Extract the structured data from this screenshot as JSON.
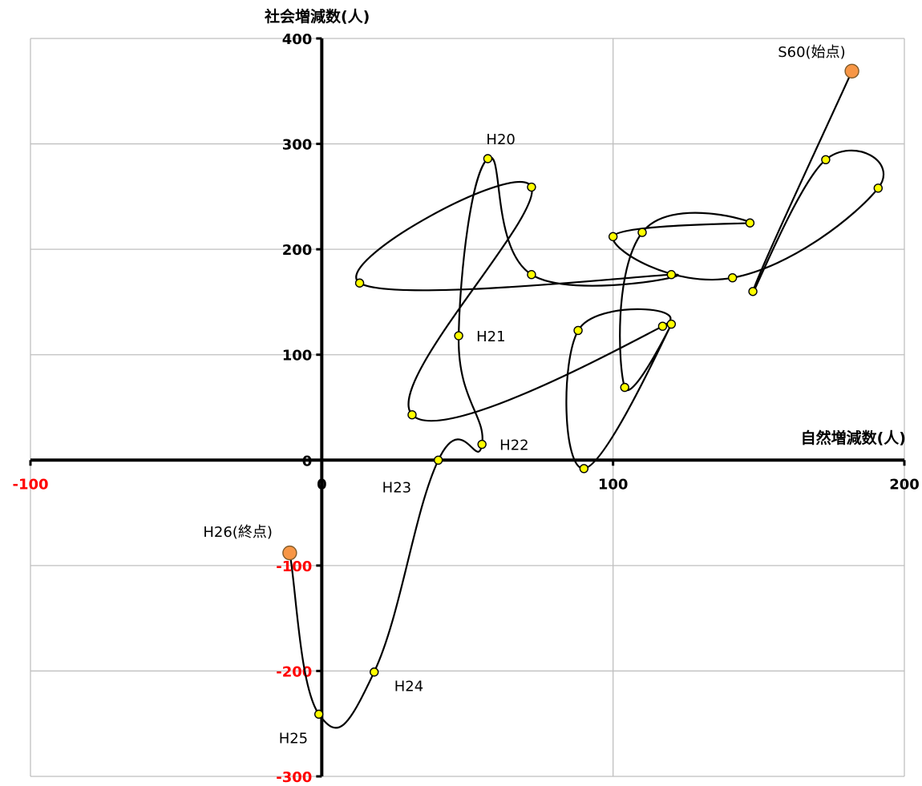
{
  "chart_data": {
    "type": "scatter",
    "connected": "smooth-line",
    "title": "",
    "xlabel": "自然増減数(人)",
    "ylabel": "社会増減数(人)",
    "xlim": [
      -100,
      200
    ],
    "ylim": [
      -300,
      400
    ],
    "x_ticks": [
      {
        "value": -100,
        "label": "-100",
        "color": "#ff0000"
      },
      {
        "value": 0,
        "label": "0",
        "color": "#000000"
      },
      {
        "value": 100,
        "label": "100",
        "color": "#000000"
      },
      {
        "value": 200,
        "label": "200",
        "color": "#000000"
      }
    ],
    "y_ticks": [
      {
        "value": -300,
        "label": "-300",
        "color": "#ff0000"
      },
      {
        "value": -200,
        "label": "-200",
        "color": "#ff0000"
      },
      {
        "value": -100,
        "label": "-100",
        "color": "#ff0000"
      },
      {
        "value": 0,
        "label": "0",
        "color": "#000000"
      },
      {
        "value": 100,
        "label": "100",
        "color": "#000000"
      },
      {
        "value": 200,
        "label": "200",
        "color": "#000000"
      },
      {
        "value": 300,
        "label": "300",
        "color": "#000000"
      },
      {
        "value": 400,
        "label": "400",
        "color": "#000000"
      }
    ],
    "grid": true,
    "colors": {
      "point": "#ffff00",
      "endpoint": "#f79646",
      "line": "#000000",
      "grid": "#bfbfbf"
    },
    "points": [
      {
        "x": 182,
        "y": 369,
        "label": "S60(始点)",
        "endpoint": true
      },
      {
        "x": 148,
        "y": 160
      },
      {
        "x": 173,
        "y": 285
      },
      {
        "x": 191,
        "y": 258
      },
      {
        "x": 141,
        "y": 173
      },
      {
        "x": 100,
        "y": 212
      },
      {
        "x": 147,
        "y": 225
      },
      {
        "x": 110,
        "y": 216
      },
      {
        "x": 104,
        "y": 69
      },
      {
        "x": 120,
        "y": 129
      },
      {
        "x": 90,
        "y": -8
      },
      {
        "x": 88,
        "y": 123
      },
      {
        "x": 117,
        "y": 127
      },
      {
        "x": 31,
        "y": 43
      },
      {
        "x": 72,
        "y": 259
      },
      {
        "x": 13,
        "y": 168
      },
      {
        "x": 120,
        "y": 176
      },
      {
        "x": 72,
        "y": 176
      },
      {
        "x": 57,
        "y": 286,
        "label": "H20"
      },
      {
        "x": 47,
        "y": 118,
        "label": "H21"
      },
      {
        "x": 55,
        "y": 15,
        "label": "H22"
      },
      {
        "x": 40,
        "y": 0,
        "label": "H23"
      },
      {
        "x": 18,
        "y": -201,
        "label": "H24"
      },
      {
        "x": -1,
        "y": -241,
        "label": "H25"
      },
      {
        "x": -11,
        "y": -88,
        "label": "H26(終点)",
        "endpoint": true
      }
    ]
  }
}
